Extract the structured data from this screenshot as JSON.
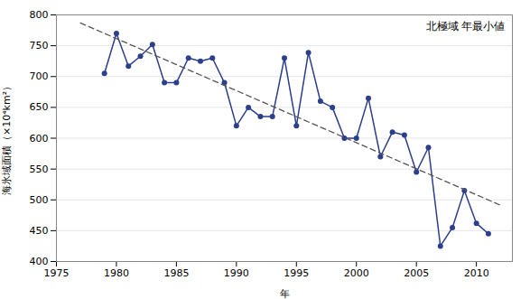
{
  "chart_data": {
    "type": "line",
    "title": "北極域 年最小値",
    "xlabel": "年",
    "ylabel": "海氷域面積（×10⁴km²）",
    "x": [
      1979,
      1980,
      1981,
      1982,
      1983,
      1984,
      1985,
      1986,
      1987,
      1988,
      1989,
      1990,
      1991,
      1992,
      1993,
      1994,
      1995,
      1996,
      1997,
      1998,
      1999,
      2000,
      2001,
      2002,
      2003,
      2004,
      2005,
      2006,
      2007,
      2008,
      2009,
      2010,
      2011
    ],
    "values": [
      705,
      770,
      717,
      733,
      752,
      690,
      690,
      730,
      725,
      730,
      690,
      620,
      650,
      635,
      635,
      730,
      620,
      739,
      660,
      650,
      600,
      600,
      665,
      570,
      610,
      605,
      545,
      585,
      425,
      455,
      515,
      462,
      445
    ],
    "color": "#2b3f8b",
    "marker": "circle",
    "trend": {
      "x": [
        1977,
        2012
      ],
      "values": [
        786.9166666667,
        491.4053030303
      ],
      "color": "#555555",
      "line_style": "dashed"
    },
    "xlim": [
      1975,
      2013
    ],
    "ylim": [
      400,
      800
    ],
    "xticks": [
      1975,
      1980,
      1985,
      1990,
      1995,
      2000,
      2005,
      2010
    ],
    "yticks": [
      400,
      450,
      500,
      550,
      600,
      650,
      700,
      750,
      800
    ],
    "grid": "y"
  }
}
